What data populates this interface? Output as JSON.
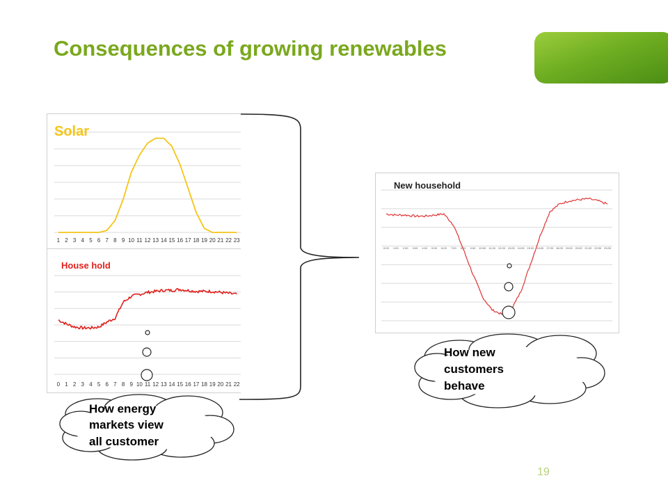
{
  "slide": {
    "title": "Consequences of growing renewables",
    "page_number": "19",
    "colors": {
      "title": "#7aa81e",
      "solar": "#f5c518",
      "household": "#e0201c",
      "new_household": "#e04040",
      "brand_bar": "#6fae22"
    }
  },
  "chart_data": [
    {
      "type": "line",
      "title": "Solar",
      "x": [
        "1",
        "2",
        "3",
        "4",
        "5",
        "6",
        "7",
        "8",
        "9",
        "10",
        "11",
        "12",
        "13",
        "14",
        "15",
        "16",
        "17",
        "18",
        "19",
        "20",
        "21",
        "22",
        "23"
      ],
      "series": [
        {
          "values": [
            0,
            0,
            0,
            0,
            0,
            0,
            0.02,
            0.12,
            0.33,
            0.6,
            0.77,
            0.89,
            0.94,
            0.94,
            0.86,
            0.68,
            0.44,
            0.2,
            0.04,
            0,
            0,
            0,
            0
          ]
        }
      ],
      "ylim": [
        0,
        1
      ],
      "grid": true
    },
    {
      "type": "line",
      "title": "House hold",
      "x": [
        "0",
        "1",
        "2",
        "3",
        "4",
        "5",
        "6",
        "7",
        "8",
        "9",
        "10",
        "11",
        "12",
        "13",
        "14",
        "15",
        "16",
        "17",
        "18",
        "19",
        "20",
        "21",
        "22"
      ],
      "series": [
        {
          "values": [
            0.55,
            0.51,
            0.48,
            0.47,
            0.47,
            0.48,
            0.53,
            0.57,
            0.73,
            0.79,
            0.81,
            0.83,
            0.84,
            0.85,
            0.85,
            0.86,
            0.85,
            0.84,
            0.84,
            0.84,
            0.83,
            0.82,
            0.81
          ]
        }
      ],
      "ylim": [
        0,
        1
      ],
      "grid": true
    },
    {
      "type": "line",
      "title": "New household",
      "x": [
        "0:00",
        "1:00",
        "2:00",
        "3:00",
        "4:00",
        "5:00",
        "6:00",
        "7:00",
        "8:00",
        "9:00",
        "10:00",
        "11:00",
        "12:00",
        "13:00",
        "14:00",
        "15:00",
        "16:00",
        "17:00",
        "18:00",
        "19:00",
        "20:00",
        "21:00",
        "22:00",
        "23:00"
      ],
      "series": [
        {
          "values": [
            0.58,
            0.57,
            0.57,
            0.56,
            0.56,
            0.57,
            0.58,
            0.48,
            0.26,
            0.03,
            -0.18,
            -0.3,
            -0.34,
            -0.3,
            -0.13,
            0.12,
            0.38,
            0.6,
            0.67,
            0.7,
            0.71,
            0.72,
            0.7,
            0.67
          ]
        }
      ],
      "ylim": [
        -0.4,
        0.8
      ],
      "grid": true
    }
  ],
  "callouts": {
    "market_view": [
      "How energy",
      "markets view",
      "all customer"
    ],
    "new_customers": [
      "How new",
      "customers",
      "behave"
    ]
  }
}
